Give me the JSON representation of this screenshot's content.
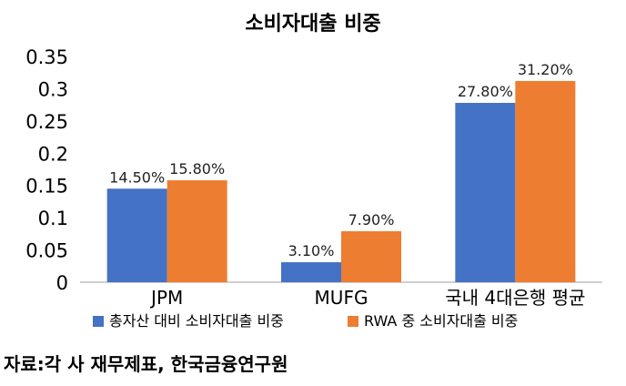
{
  "chart_data": {
    "type": "bar",
    "title": "소비자대출 비중",
    "categories": [
      "JPM",
      "MUFG",
      "국내 4대은행 평균"
    ],
    "series": [
      {
        "name": "총자산 대비 소비자대출 비중",
        "color": "#4472C4",
        "values": [
          0.145,
          0.031,
          0.278
        ],
        "data_labels": [
          "14.50%",
          "3.10%",
          "27.80%"
        ]
      },
      {
        "name": "RWA 중 소비자대출 비중",
        "color": "#ED7D31",
        "values": [
          0.158,
          0.079,
          0.312
        ],
        "data_labels": [
          "15.80%",
          "7.90%",
          "31.20%"
        ]
      }
    ],
    "ylim": [
      0,
      0.35
    ],
    "yticks": [
      "0",
      "0.05",
      "0.1",
      "0.15",
      "0.2",
      "0.25",
      "0.3",
      "0.35"
    ],
    "grid": false,
    "legend_position": "bottom"
  },
  "source_note": "자료:각 사 재무제표, 한국금융연구원"
}
